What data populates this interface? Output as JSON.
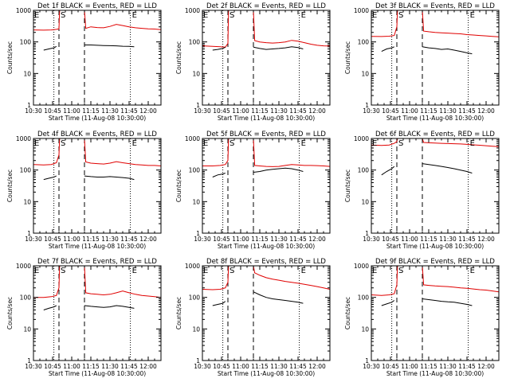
{
  "chart_data": {
    "type": "line",
    "shared": {
      "xlabel": "Start Time (11-Aug-08 10:30:00)",
      "ylabel": "Counts/sec",
      "x_tick_labels": [
        "10:30",
        "10:45",
        "11:00",
        "11:15",
        "11:30",
        "11:45",
        "12:00"
      ],
      "x_tick_minutes": [
        0,
        15,
        30,
        45,
        60,
        75,
        90
      ],
      "xlim_minutes": [
        0,
        100
      ],
      "y_scale": "log",
      "ylim": [
        1,
        1000
      ],
      "y_tick_labels": [
        "1",
        "10",
        "100",
        "1000"
      ],
      "y_tick_values": [
        1,
        10,
        100,
        1000
      ],
      "series_colors": {
        "events": "#000000",
        "lld": "#e00000"
      }
    },
    "panels": [
      {
        "title": "Det 1f BLACK = Events, RED = LLD",
        "marks": {
          "E_left": 0.3,
          "S": 20,
          "E_right": 76
        },
        "dashed_x": [
          20,
          40
        ],
        "dotted_x": [
          16,
          76
        ],
        "events": {
          "x": [
            8,
            12,
            16,
            18
          ],
          "y": [
            55,
            60,
            65,
            72
          ],
          "x2": [
            40,
            45,
            50,
            55,
            60,
            65,
            70,
            75,
            79
          ],
          "y2": [
            80,
            80,
            78,
            77,
            76,
            75,
            73,
            72,
            70
          ]
        },
        "lld": {
          "x": [
            0,
            8,
            14,
            18,
            20,
            20.5,
            40,
            41,
            45,
            50,
            55,
            60,
            65,
            70,
            75,
            80,
            85,
            90,
            95,
            100
          ],
          "y": [
            240,
            235,
            240,
            250,
            260,
            1000,
            1000,
            270,
            300,
            285,
            280,
            310,
            360,
            330,
            300,
            280,
            270,
            260,
            255,
            245
          ]
        }
      },
      {
        "title": "Det 2f BLACK = Events, RED = LLD",
        "marks": {
          "E_left": 0.3,
          "S": 20,
          "E_right": 76
        },
        "dashed_x": [
          20,
          40
        ],
        "dotted_x": [
          16,
          76
        ],
        "events": {
          "x": [
            8,
            12,
            16,
            18
          ],
          "y": [
            55,
            58,
            62,
            68
          ],
          "x2": [
            40,
            45,
            50,
            55,
            60,
            65,
            70,
            75,
            79
          ],
          "y2": [
            68,
            62,
            58,
            60,
            62,
            65,
            70,
            66,
            60
          ]
        },
        "lld": {
          "x": [
            0,
            8,
            14,
            18,
            20,
            20.5,
            40,
            41,
            45,
            50,
            55,
            60,
            65,
            70,
            75,
            80,
            85,
            90,
            95,
            100
          ],
          "y": [
            75,
            72,
            70,
            68,
            90,
            1000,
            1000,
            110,
            100,
            95,
            92,
            95,
            100,
            112,
            105,
            95,
            85,
            78,
            75,
            74
          ]
        }
      },
      {
        "title": "Det 3f BLACK = Events, RED = LLD",
        "marks": {
          "E_left": 0.3,
          "S": 20,
          "E_right": 76
        },
        "dashed_x": [
          20,
          40
        ],
        "dotted_x": [
          16,
          76
        ],
        "events": {
          "x": [
            8,
            12,
            16,
            18
          ],
          "y": [
            50,
            60,
            65,
            70
          ],
          "x2": [
            40,
            45,
            50,
            55,
            60,
            65,
            70,
            75,
            79
          ],
          "y2": [
            70,
            65,
            62,
            58,
            60,
            55,
            50,
            45,
            42
          ]
        },
        "lld": {
          "x": [
            0,
            8,
            14,
            18,
            20,
            20.5,
            40,
            41,
            45,
            50,
            55,
            60,
            65,
            70,
            75,
            80,
            85,
            90,
            95,
            100
          ],
          "y": [
            150,
            148,
            152,
            160,
            300,
            1000,
            1000,
            220,
            210,
            200,
            195,
            190,
            185,
            180,
            170,
            165,
            160,
            155,
            150,
            145
          ]
        }
      },
      {
        "title": "Det 4f BLACK = Events, RED = LLD",
        "marks": {
          "E_left": 0.3,
          "S": 20,
          "E_right": 76
        },
        "dashed_x": [
          20,
          40
        ],
        "dotted_x": [
          16,
          76
        ],
        "events": {
          "x": [
            8,
            12,
            16,
            18
          ],
          "y": [
            50,
            55,
            60,
            65
          ],
          "x2": [
            40,
            45,
            50,
            55,
            60,
            65,
            70,
            75,
            79
          ],
          "y2": [
            65,
            62,
            60,
            60,
            62,
            60,
            58,
            55,
            50
          ]
        },
        "lld": {
          "x": [
            0,
            8,
            14,
            18,
            20,
            20.5,
            40,
            41,
            45,
            50,
            55,
            60,
            65,
            70,
            75,
            80,
            85,
            90,
            95,
            100
          ],
          "y": [
            150,
            145,
            150,
            170,
            300,
            1000,
            1000,
            180,
            165,
            160,
            155,
            165,
            185,
            170,
            160,
            150,
            145,
            140,
            140,
            135
          ]
        }
      },
      {
        "title": "Det 5f BLACK = Events, RED = LLD",
        "marks": {
          "E_left": 0.3,
          "S": 20,
          "E_right": 76
        },
        "dashed_x": [
          20,
          40
        ],
        "dotted_x": [
          16,
          76
        ],
        "events": {
          "x": [
            8,
            12,
            16,
            18
          ],
          "y": [
            60,
            70,
            75,
            80
          ],
          "x2": [
            40,
            45,
            50,
            55,
            60,
            65,
            70,
            75,
            79
          ],
          "y2": [
            85,
            90,
            100,
            105,
            110,
            115,
            110,
            100,
            90
          ]
        },
        "lld": {
          "x": [
            0,
            8,
            14,
            18,
            20,
            20.5,
            40,
            41,
            45,
            50,
            55,
            60,
            65,
            70,
            75,
            80,
            85,
            90,
            95,
            100
          ],
          "y": [
            135,
            135,
            140,
            150,
            200,
            1000,
            1000,
            140,
            135,
            130,
            128,
            130,
            140,
            150,
            145,
            140,
            140,
            138,
            135,
            130
          ]
        }
      },
      {
        "title": "Det 6f BLACK = Events, RED = LLD",
        "marks": {
          "E_left": 0.3,
          "S": 20,
          "E_right": 76
        },
        "dashed_x": [
          20,
          40
        ],
        "dotted_x": [
          16,
          76
        ],
        "events": {
          "x": [
            8,
            12,
            16,
            18
          ],
          "y": [
            70,
            90,
            110,
            130
          ],
          "x2": [
            40,
            45,
            50,
            55,
            60,
            65,
            70,
            75,
            79
          ],
          "y2": [
            160,
            150,
            140,
            130,
            120,
            110,
            100,
            90,
            80
          ]
        },
        "lld": {
          "x": [
            0,
            8,
            14,
            18,
            20,
            20.5,
            40,
            41,
            45,
            50,
            55,
            60,
            65,
            70,
            75,
            80,
            85,
            90,
            95,
            100
          ],
          "y": [
            620,
            600,
            620,
            700,
            800,
            1000,
            1000,
            750,
            730,
            720,
            700,
            690,
            680,
            670,
            650,
            630,
            610,
            590,
            570,
            550
          ]
        }
      },
      {
        "title": "Det 7f BLACK = Events, RED = LLD",
        "marks": {
          "E_left": 0.3,
          "S": 20,
          "E_right": 76
        },
        "dashed_x": [
          20,
          40
        ],
        "dotted_x": [
          16,
          76
        ],
        "events": {
          "x": [
            8,
            12,
            16,
            18
          ],
          "y": [
            40,
            45,
            50,
            55
          ],
          "x2": [
            40,
            45,
            50,
            55,
            60,
            65,
            70,
            75,
            79
          ],
          "y2": [
            55,
            52,
            50,
            48,
            50,
            55,
            52,
            48,
            45
          ]
        },
        "lld": {
          "x": [
            0,
            8,
            14,
            18,
            20,
            20.5,
            40,
            41,
            45,
            50,
            55,
            60,
            65,
            70,
            75,
            80,
            85,
            90,
            95,
            100
          ],
          "y": [
            100,
            100,
            105,
            115,
            200,
            1000,
            1000,
            140,
            130,
            125,
            120,
            125,
            140,
            160,
            140,
            125,
            115,
            110,
            105,
            100
          ]
        }
      },
      {
        "title": "Det 8f BLACK = Events, RED = LLD",
        "marks": {
          "E_left": 0.3,
          "S": 20,
          "E_right": 76
        },
        "dashed_x": [
          20,
          40
        ],
        "dotted_x": [
          16,
          76
        ],
        "events": {
          "x": [
            8,
            12,
            16,
            18
          ],
          "y": [
            55,
            60,
            65,
            75
          ],
          "x2": [
            40,
            45,
            50,
            55,
            60,
            65,
            70,
            75,
            79
          ],
          "y2": [
            150,
            120,
            100,
            90,
            85,
            80,
            75,
            70,
            65
          ]
        },
        "lld": {
          "x": [
            0,
            8,
            14,
            18,
            20,
            20.5,
            40,
            41,
            45,
            50,
            55,
            60,
            65,
            70,
            75,
            80,
            85,
            90,
            95,
            100
          ],
          "y": [
            180,
            175,
            180,
            200,
            300,
            1000,
            1000,
            600,
            500,
            420,
            380,
            350,
            320,
            300,
            280,
            260,
            240,
            220,
            200,
            180
          ]
        }
      },
      {
        "title": "Det 9f BLACK = Events, RED = LLD",
        "marks": {
          "E_left": 0.3,
          "S": 20,
          "E_right": 76
        },
        "dashed_x": [
          20,
          40
        ],
        "dotted_x": [
          16,
          76
        ],
        "events": {
          "x": [
            8,
            12,
            16,
            18
          ],
          "y": [
            55,
            62,
            70,
            80
          ],
          "x2": [
            40,
            45,
            50,
            55,
            60,
            65,
            70,
            75,
            79
          ],
          "y2": [
            90,
            85,
            80,
            75,
            72,
            70,
            65,
            60,
            55
          ]
        },
        "lld": {
          "x": [
            0,
            8,
            14,
            18,
            20,
            20.5,
            40,
            41,
            45,
            50,
            55,
            60,
            65,
            70,
            75,
            80,
            85,
            90,
            95,
            100
          ],
          "y": [
            120,
            115,
            120,
            130,
            250,
            1000,
            1000,
            250,
            240,
            230,
            225,
            220,
            210,
            200,
            195,
            185,
            175,
            170,
            160,
            150
          ]
        }
      }
    ]
  }
}
